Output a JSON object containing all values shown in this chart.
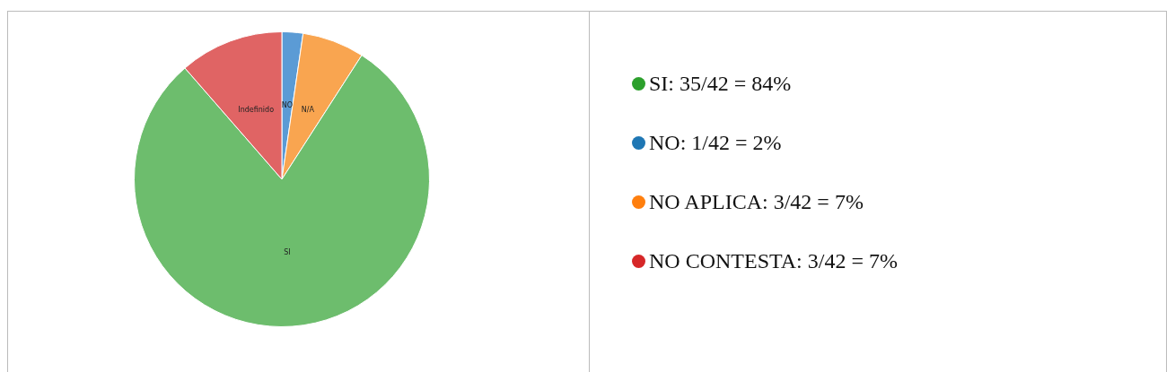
{
  "chart_data": {
    "type": "pie",
    "categories": [
      "NO",
      "N/A",
      "SI",
      "Indefinido"
    ],
    "values": [
      2.3,
      6.8,
      79.5,
      11.4
    ],
    "colors": [
      "#5b9bd5",
      "#f9a550",
      "#6dbd6d",
      "#e06464"
    ],
    "legend": false,
    "annotations": [
      "SI: 35/42 = 84%",
      "NO: 1/42 = 2%",
      "NO APLICA: 3/42 = 7%",
      "NO CONTESTA: 3/42 = 7%"
    ]
  }
}
